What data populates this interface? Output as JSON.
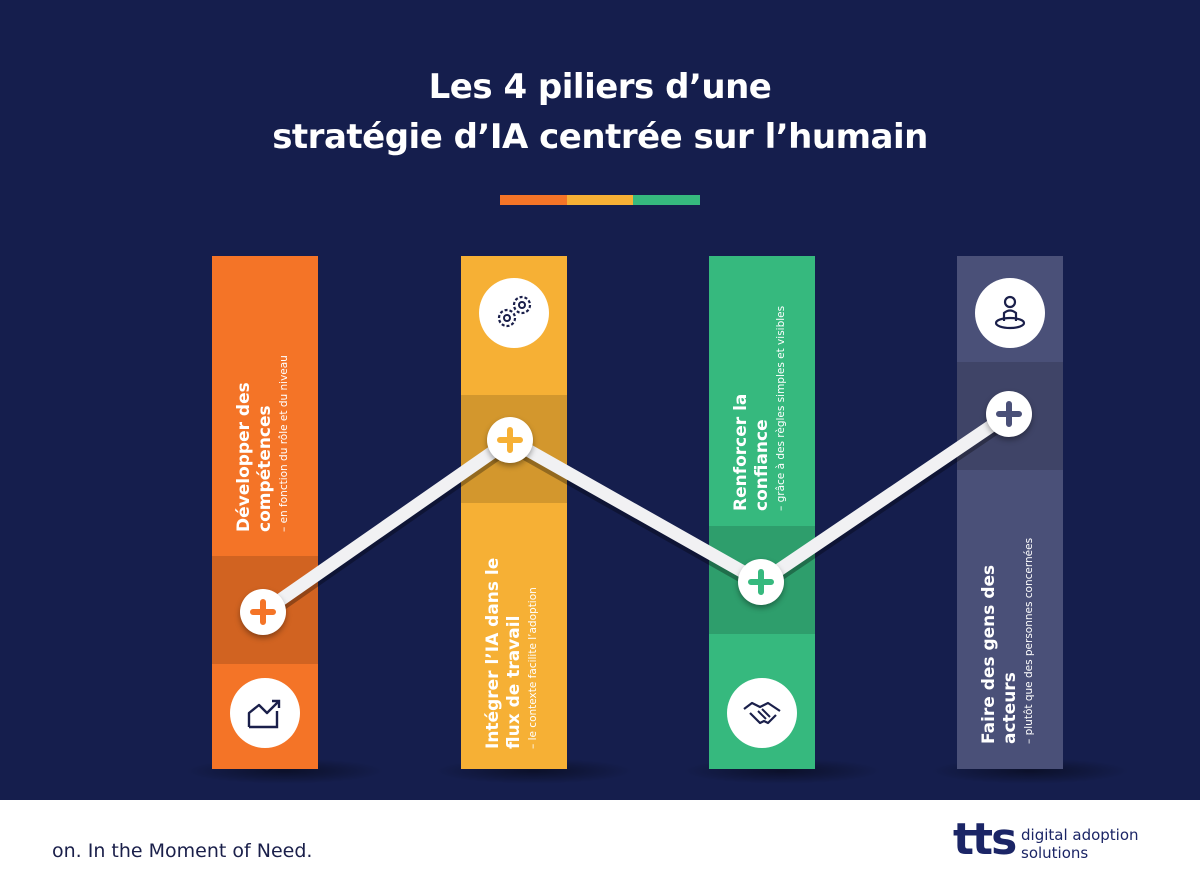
{
  "title": {
    "line1": "Les 4 piliers d’une",
    "line2": "stratégie d’IA centrée sur l’humain"
  },
  "colors": {
    "background": "#151e4d",
    "orange": "#f47427",
    "yellow": "#f6b035",
    "green": "#36b97e",
    "slate": "#4a5078"
  },
  "pillars": [
    {
      "title": [
        "Développer des",
        "compétences"
      ],
      "subtitle": "– en fonction du rôle et du niveau",
      "icon": "growth-chart-icon",
      "color": "#f47427",
      "level": 1
    },
    {
      "title": [
        "Intégrer l’IA dans le",
        "flux de travail"
      ],
      "subtitle": "– le contexte facilite l’adoption",
      "icon": "gears-icon",
      "color": "#f6b035",
      "level": 2
    },
    {
      "title": [
        "Renforcer la",
        "confiance"
      ],
      "subtitle": "– grâce à des règles simples et visibles",
      "icon": "handshake-icon",
      "color": "#36b97e",
      "level": 1
    },
    {
      "title": [
        "Faire des gens des",
        "acteurs"
      ],
      "subtitle": "– plutôt que des personnes concernées",
      "icon": "person-location-icon",
      "color": "#4a5078",
      "level": 2
    }
  ],
  "footer": {
    "tagline": "on. In the Moment of Need.",
    "logo_mark": "tts",
    "logo_line1": "digital adoption",
    "logo_line2": "solutions"
  }
}
